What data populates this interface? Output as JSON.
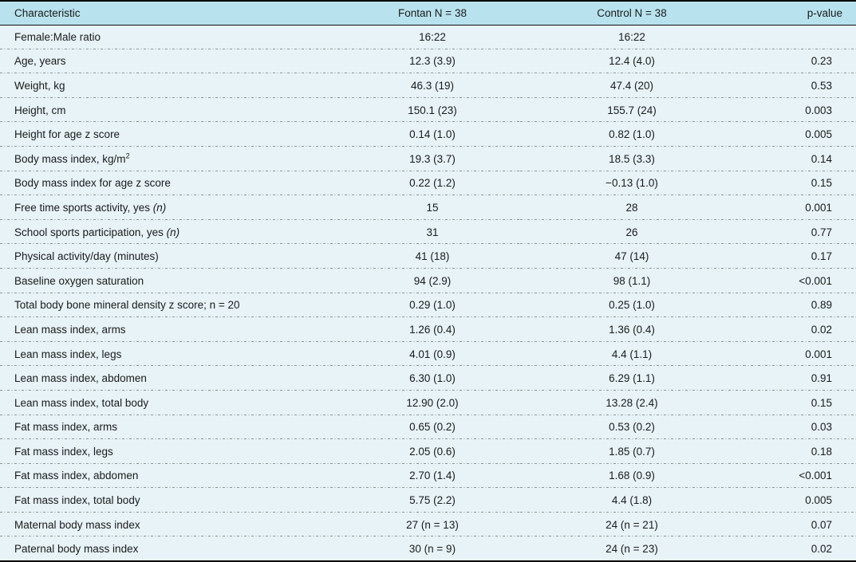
{
  "colors": {
    "header_bg": "#b8e3ee",
    "body_bg": "#e7f3f7",
    "rule": "#000000",
    "dash": "#8c9499",
    "text": "#1b1b1b"
  },
  "table": {
    "columns": [
      "Characteristic",
      "Fontan N = 38",
      "Control N = 38",
      "p-value"
    ],
    "rows": [
      {
        "label": "Female:Male ratio",
        "sup": "",
        "italic": "",
        "fontan": "16:22",
        "control": "16:22",
        "p": ""
      },
      {
        "label": "Age, years",
        "sup": "",
        "italic": "",
        "fontan": "12.3 (3.9)",
        "control": "12.4 (4.0)",
        "p": "0.23"
      },
      {
        "label": "Weight, kg",
        "sup": "",
        "italic": "",
        "fontan": "46.3 (19)",
        "control": "47.4 (20)",
        "p": "0.53"
      },
      {
        "label": "Height, cm",
        "sup": "",
        "italic": "",
        "fontan": "150.1 (23)",
        "control": "155.7 (24)",
        "p": "0.003"
      },
      {
        "label": "Height for age z score",
        "sup": "",
        "italic": "",
        "fontan": "0.14 (1.0)",
        "control": "0.82 (1.0)",
        "p": "0.005"
      },
      {
        "label": "Body mass index, kg/m",
        "sup": "2",
        "italic": "",
        "fontan": "19.3 (3.7)",
        "control": "18.5 (3.3)",
        "p": "0.14"
      },
      {
        "label": "Body mass index for age z score",
        "sup": "",
        "italic": "",
        "fontan": "0.22 (1.2)",
        "control": "−0.13 (1.0)",
        "p": "0.15"
      },
      {
        "label": "Free time sports activity, yes ",
        "sup": "",
        "italic": "(n)",
        "fontan": "15",
        "control": "28",
        "p": "0.001"
      },
      {
        "label": "School sports participation, yes ",
        "sup": "",
        "italic": "(n)",
        "fontan": "31",
        "control": "26",
        "p": "0.77"
      },
      {
        "label": "Physical activity/day (minutes)",
        "sup": "",
        "italic": "",
        "fontan": "41 (18)",
        "control": "47 (14)",
        "p": "0.17"
      },
      {
        "label": "Baseline oxygen saturation",
        "sup": "",
        "italic": "",
        "fontan": "94 (2.9)",
        "control": "98 (1.1)",
        "p": "<0.001"
      },
      {
        "label": "Total body bone mineral density z score; n = 20",
        "sup": "",
        "italic": "",
        "fontan": "0.29 (1.0)",
        "control": "0.25 (1.0)",
        "p": "0.89"
      },
      {
        "label": "Lean mass index, arms",
        "sup": "",
        "italic": "",
        "fontan": "1.26 (0.4)",
        "control": "1.36 (0.4)",
        "p": "0.02"
      },
      {
        "label": "Lean mass index, legs",
        "sup": "",
        "italic": "",
        "fontan": "4.01 (0.9)",
        "control": "4.4 (1.1)",
        "p": "0.001"
      },
      {
        "label": "Lean mass index, abdomen",
        "sup": "",
        "italic": "",
        "fontan": "6.30 (1.0)",
        "control": "6.29 (1.1)",
        "p": "0.91"
      },
      {
        "label": "Lean mass index, total body",
        "sup": "",
        "italic": "",
        "fontan": "12.90 (2.0)",
        "control": "13.28 (2.4)",
        "p": "0.15"
      },
      {
        "label": "Fat mass index, arms",
        "sup": "",
        "italic": "",
        "fontan": "0.65 (0.2)",
        "control": "0.53 (0.2)",
        "p": "0.03"
      },
      {
        "label": "Fat mass index, legs",
        "sup": "",
        "italic": "",
        "fontan": "2.05 (0.6)",
        "control": "1.85 (0.7)",
        "p": "0.18"
      },
      {
        "label": "Fat mass index, abdomen",
        "sup": "",
        "italic": "",
        "fontan": "2.70 (1.4)",
        "control": "1.68 (0.9)",
        "p": "<0.001"
      },
      {
        "label": "Fat mass index, total body",
        "sup": "",
        "italic": "",
        "fontan": "5.75 (2.2)",
        "control": "4.4 (1.8)",
        "p": "0.005"
      },
      {
        "label": "Maternal body mass index",
        "sup": "",
        "italic": "",
        "fontan": "27 (n = 13)",
        "control": "24 (n = 21)",
        "p": "0.07"
      },
      {
        "label": "Paternal body mass index",
        "sup": "",
        "italic": "",
        "fontan": "30 (n = 9)",
        "control": "24 (n = 23)",
        "p": "0.02"
      }
    ]
  }
}
